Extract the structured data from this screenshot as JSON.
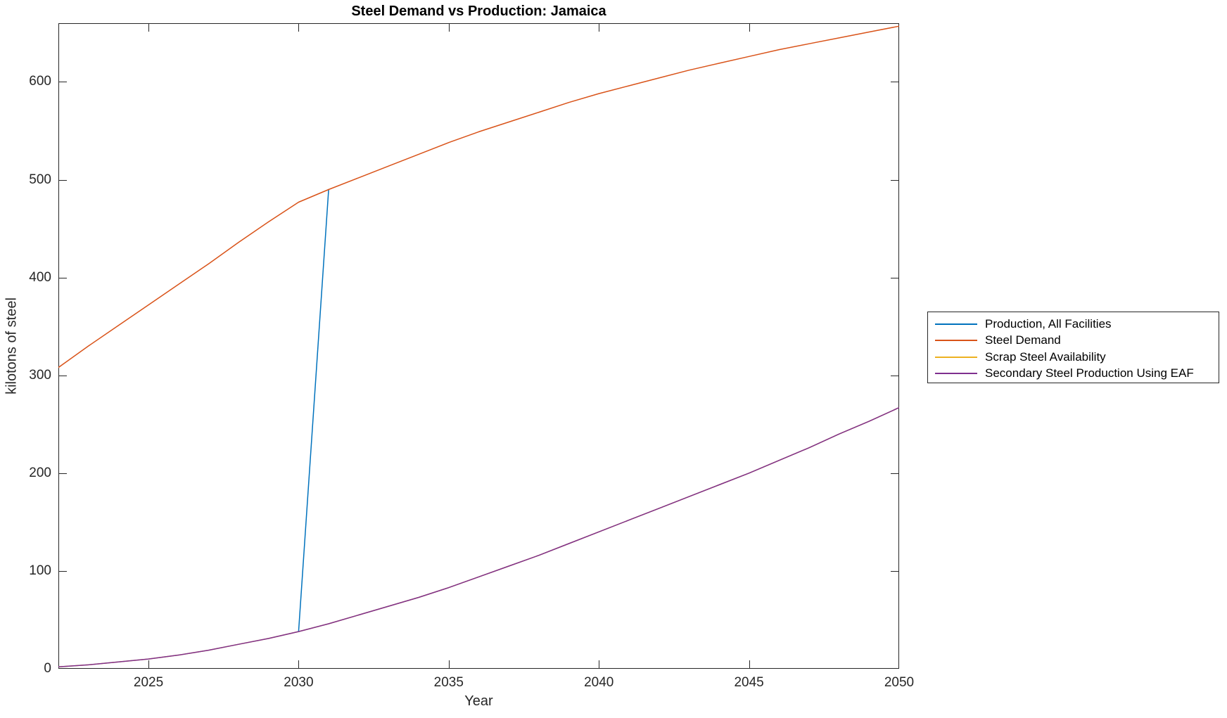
{
  "chart_data": {
    "type": "line",
    "title": "Steel Demand vs Production: Jamaica",
    "xlabel": "Year",
    "ylabel": "kilotons of steel",
    "xlim": [
      2022,
      2050
    ],
    "ylim": [
      0,
      660
    ],
    "xticks": [
      2025,
      2030,
      2035,
      2040,
      2045,
      2050
    ],
    "yticks": [
      0,
      100,
      200,
      300,
      400,
      500,
      600
    ],
    "grid": false,
    "legend_position": "outside-right",
    "axis_color": "#262626",
    "series": [
      {
        "name": "Production, All Facilities",
        "color": "#0072BD",
        "x": [
          2030,
          2031
        ],
        "values": [
          38,
          490
        ]
      },
      {
        "name": "Steel Demand",
        "color": "#D95319",
        "x": [
          2022,
          2023,
          2024,
          2025,
          2026,
          2027,
          2028,
          2029,
          2030,
          2031,
          2032,
          2033,
          2034,
          2035,
          2036,
          2037,
          2038,
          2039,
          2040,
          2041,
          2042,
          2043,
          2044,
          2045,
          2046,
          2047,
          2048,
          2049,
          2050
        ],
        "values": [
          308,
          330,
          351,
          372,
          393,
          414,
          436,
          457,
          477,
          490,
          502,
          514,
          526,
          538,
          549,
          559,
          569,
          579,
          588,
          596,
          604,
          612,
          619,
          626,
          633,
          639,
          645,
          651,
          657
        ]
      },
      {
        "name": "Scrap Steel Availability",
        "color": "#EDB120",
        "x": [
          2022,
          2023,
          2024,
          2025,
          2026,
          2027,
          2028,
          2029,
          2030,
          2031,
          2032,
          2033,
          2034,
          2035,
          2036,
          2037,
          2038,
          2039,
          2040,
          2041,
          2042,
          2043,
          2044,
          2045,
          2046,
          2047,
          2048,
          2049,
          2050
        ],
        "values": [
          2,
          4,
          7,
          10,
          14,
          19,
          25,
          31,
          38,
          46,
          55,
          64,
          73,
          83,
          94,
          105,
          116,
          128,
          140,
          152,
          164,
          176,
          188,
          200,
          213,
          226,
          240,
          253,
          267
        ]
      },
      {
        "name": "Secondary Steel Production Using EAF",
        "color": "#7E2F8E",
        "x": [
          2022,
          2023,
          2024,
          2025,
          2026,
          2027,
          2028,
          2029,
          2030,
          2031,
          2032,
          2033,
          2034,
          2035,
          2036,
          2037,
          2038,
          2039,
          2040,
          2041,
          2042,
          2043,
          2044,
          2045,
          2046,
          2047,
          2048,
          2049,
          2050
        ],
        "values": [
          2,
          4,
          7,
          10,
          14,
          19,
          25,
          31,
          38,
          46,
          55,
          64,
          73,
          83,
          94,
          105,
          116,
          128,
          140,
          152,
          164,
          176,
          188,
          200,
          213,
          226,
          240,
          253,
          267
        ]
      }
    ]
  }
}
